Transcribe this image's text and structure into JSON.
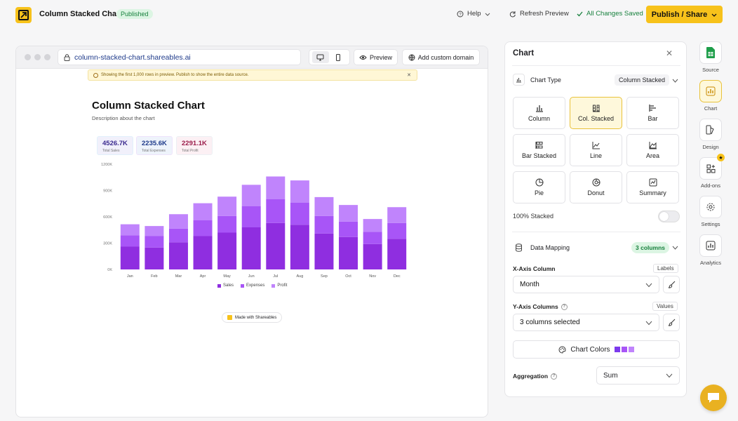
{
  "app": {
    "title": "Column Stacked Chart",
    "status": "Published"
  },
  "topbar": {
    "help": "Help",
    "refresh": "Refresh Preview",
    "saved": "All Changes Saved",
    "publish": "Publish / Share"
  },
  "browser": {
    "url": "column-stacked-chart.shareables.ai",
    "preview": "Preview",
    "custom_domain": "Add custom domain"
  },
  "notice": "Showing the first 1,000 rows in preview. Publish to show the entire data source.",
  "page": {
    "title": "Column Stacked Chart",
    "description": "Description about the chart",
    "made_with": "Made with Shareables"
  },
  "kpis": [
    {
      "value": "4526.7K",
      "label": "Total Sales",
      "color": "#3b2a8f",
      "bg": "#f1f0fb"
    },
    {
      "value": "2235.6K",
      "label": "Total Expenses",
      "color": "#1e3a8a",
      "bg": "#eef3fb"
    },
    {
      "value": "2291.1K",
      "label": "Total Profit",
      "color": "#9b1c4a",
      "bg": "#fcf0f4"
    }
  ],
  "chart_data": {
    "type": "bar",
    "stacked": true,
    "categories": [
      "Jan",
      "Feb",
      "Mar",
      "Apr",
      "May",
      "Jun",
      "Jul",
      "Aug",
      "Sep",
      "Oct",
      "Nov",
      "Dec"
    ],
    "series": [
      {
        "name": "Sales",
        "color": "#8f2ee0",
        "values": [
          260,
          250,
          310,
          380,
          420,
          480,
          530,
          510,
          410,
          370,
          290,
          350
        ]
      },
      {
        "name": "Expenses",
        "color": "#a855f7",
        "values": [
          130,
          130,
          155,
          180,
          190,
          240,
          270,
          250,
          200,
          175,
          140,
          180
        ]
      },
      {
        "name": "Profit",
        "color": "#c084fc",
        "values": [
          125,
          115,
          165,
          195,
          220,
          245,
          260,
          255,
          215,
          190,
          145,
          180
        ]
      }
    ],
    "ylim": [
      0,
      1200
    ],
    "yticks": [
      "0K",
      "300K",
      "600K",
      "900K",
      "1200K"
    ],
    "legend": "bottom"
  },
  "panel": {
    "title": "Chart",
    "chart_type_label": "Chart Type",
    "chart_type_value": "Column Stacked",
    "types": [
      {
        "label": "Column",
        "icon": "column-chart-icon"
      },
      {
        "label": "Col. Stacked",
        "icon": "stacked-column-icon",
        "active": true
      },
      {
        "label": "Bar",
        "icon": "bar-chart-icon"
      },
      {
        "label": "Bar Stacked",
        "icon": "stacked-bar-icon"
      },
      {
        "label": "Line",
        "icon": "line-chart-icon"
      },
      {
        "label": "Area",
        "icon": "area-chart-icon"
      },
      {
        "label": "Pie",
        "icon": "pie-chart-icon"
      },
      {
        "label": "Donut",
        "icon": "donut-chart-icon"
      },
      {
        "label": "Summary",
        "icon": "summary-icon"
      }
    ],
    "stacked_100_label": "100% Stacked",
    "data_mapping_label": "Data Mapping",
    "columns_pill": "3 columns",
    "x_axis_label": "X-Axis Column",
    "labels_btn": "Labels",
    "x_axis_value": "Month",
    "y_axis_label": "Y-Axis Columns",
    "values_btn": "Values",
    "y_axis_value": "3 columns selected",
    "chart_colors": "Chart Colors",
    "color_swatches": [
      "#7c3aed",
      "#a855f7",
      "#c084fc"
    ],
    "aggregation_label": "Aggregation",
    "aggregation_value": "Sum"
  },
  "rail": [
    {
      "label": "Source",
      "icon": "sheets-icon"
    },
    {
      "label": "Chart",
      "icon": "chart-icon",
      "active": true
    },
    {
      "label": "Design",
      "icon": "design-icon"
    },
    {
      "label": "Add-ons",
      "icon": "addons-icon"
    },
    {
      "label": "Settings",
      "icon": "settings-icon"
    },
    {
      "label": "Analytics",
      "icon": "analytics-icon"
    }
  ]
}
